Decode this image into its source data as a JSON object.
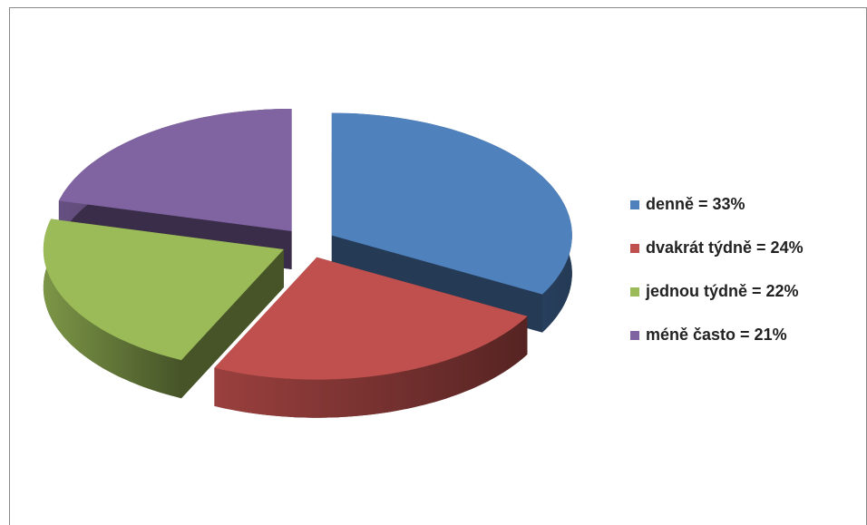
{
  "chart_data": {
    "type": "pie",
    "categories": [
      "denně = 33%",
      "dvakrát týdně = 24%",
      "jednou týdně = 22%",
      "méně často = 21%"
    ],
    "values": [
      33,
      24,
      22,
      21
    ],
    "colors": [
      "#4f81bd",
      "#c0504d",
      "#9bbb59",
      "#8064a2"
    ],
    "legend": "right"
  }
}
